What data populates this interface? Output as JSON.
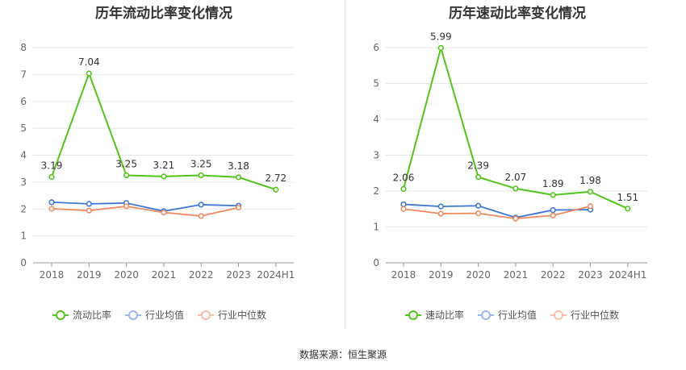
{
  "chart_data": [
    {
      "type": "line",
      "title": "历年流动比率变化情况",
      "categories": [
        "2018",
        "2019",
        "2020",
        "2021",
        "2022",
        "2023",
        "2024H1"
      ],
      "ylim": [
        0,
        8
      ],
      "yticks": [
        "0",
        "1",
        "2",
        "3",
        "4",
        "5",
        "6",
        "7",
        "8"
      ],
      "grid": true,
      "legend_position": "bottom",
      "series": [
        {
          "name": "流动比率",
          "color": "#52c41a",
          "values": [
            3.19,
            7.04,
            3.25,
            3.21,
            3.25,
            3.18,
            2.72
          ],
          "labels": [
            "3.19",
            "7.04",
            "3.25",
            "3.21",
            "3.25",
            "3.18",
            "2.72"
          ]
        },
        {
          "name": "行业均值",
          "color": "#3f77d6",
          "values": [
            2.25,
            2.19,
            2.22,
            1.92,
            2.16,
            2.12,
            null
          ]
        },
        {
          "name": "行业中位数",
          "color": "#f08a5d",
          "values": [
            2.01,
            1.94,
            2.1,
            1.87,
            1.74,
            2.05,
            null
          ]
        }
      ]
    },
    {
      "type": "line",
      "title": "历年速动比率变化情况",
      "categories": [
        "2018",
        "2019",
        "2020",
        "2021",
        "2022",
        "2023",
        "2024H1"
      ],
      "ylim": [
        0,
        6
      ],
      "yticks": [
        "0",
        "1",
        "2",
        "3",
        "4",
        "5",
        "6"
      ],
      "grid": true,
      "legend_position": "bottom",
      "series": [
        {
          "name": "速动比率",
          "color": "#52c41a",
          "values": [
            2.06,
            5.99,
            2.39,
            2.07,
            1.89,
            1.98,
            1.51
          ],
          "labels": [
            "2.06",
            "5.99",
            "2.39",
            "2.07",
            "1.89",
            "1.98",
            "1.51"
          ]
        },
        {
          "name": "行业均值",
          "color": "#3f77d6",
          "values": [
            1.63,
            1.57,
            1.59,
            1.26,
            1.47,
            1.48,
            null
          ]
        },
        {
          "name": "行业中位数",
          "color": "#f08a5d",
          "values": [
            1.5,
            1.37,
            1.38,
            1.23,
            1.32,
            1.58,
            null
          ]
        }
      ]
    }
  ],
  "legend_colors": {
    "流动比率": "#52c41a",
    "行业均值": "#9bb8ea",
    "行业中位数": "#f6c1aa"
  },
  "source": "数据来源：恒生聚源"
}
